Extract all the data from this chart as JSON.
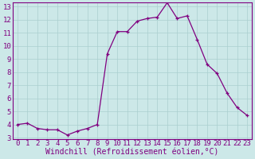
{
  "x": [
    0,
    1,
    2,
    3,
    4,
    5,
    6,
    7,
    8,
    9,
    10,
    11,
    12,
    13,
    14,
    15,
    16,
    17,
    18,
    19,
    20,
    21,
    22,
    23
  ],
  "y": [
    4.0,
    4.1,
    3.7,
    3.6,
    3.6,
    3.2,
    3.5,
    3.7,
    4.0,
    9.4,
    11.1,
    11.1,
    11.9,
    12.1,
    12.2,
    13.3,
    12.1,
    12.3,
    10.5,
    8.6,
    7.9,
    6.4,
    5.3,
    4.7
  ],
  "line_color": "#800080",
  "marker": "+",
  "marker_color": "#800080",
  "bg_color": "#cce8e8",
  "grid_color": "#aacfcf",
  "xlabel": "Windchill (Refroidissement éolien,°C)",
  "xlabel_color": "#800080",
  "tick_color": "#800080",
  "ylim": [
    3,
    13
  ],
  "yticks": [
    3,
    4,
    5,
    6,
    7,
    8,
    9,
    10,
    11,
    12,
    13
  ],
  "xlim": [
    -0.5,
    23.5
  ],
  "xticks": [
    0,
    1,
    2,
    3,
    4,
    5,
    6,
    7,
    8,
    9,
    10,
    11,
    12,
    13,
    14,
    15,
    16,
    17,
    18,
    19,
    20,
    21,
    22,
    23
  ],
  "spine_color": "#800080",
  "font_size": 6.5,
  "xlabel_fontsize": 7.0
}
